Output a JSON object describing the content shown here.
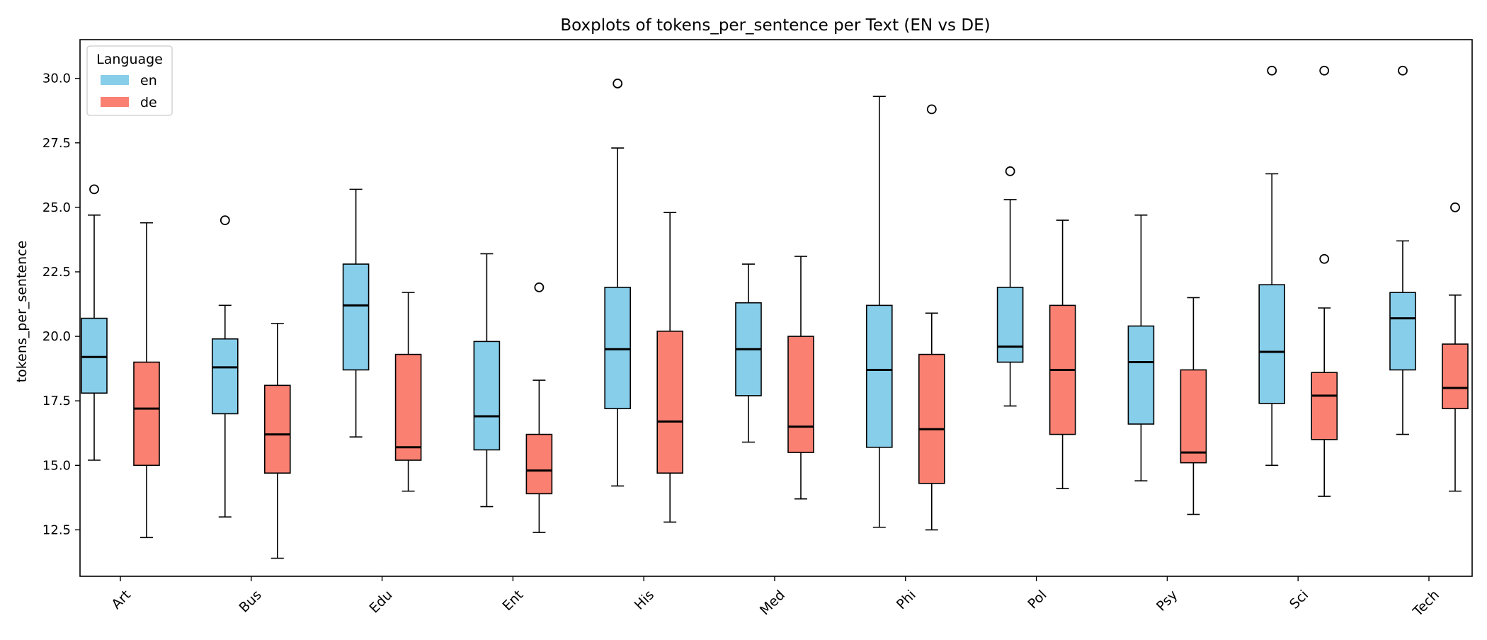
{
  "chart_data": {
    "type": "boxplot",
    "title": "Boxplots of tokens_per_sentence per Text (EN vs DE)",
    "xlabel": "",
    "ylabel": "tokens_per_sentence",
    "ylim": [
      10.7,
      31.5
    ],
    "yticks": [
      12.5,
      15.0,
      17.5,
      20.0,
      22.5,
      25.0,
      27.5,
      30.0
    ],
    "ytick_labels": [
      "12.5",
      "15.0",
      "17.5",
      "20.0",
      "22.5",
      "25.0",
      "27.5",
      "30.0"
    ],
    "categories": [
      "Art",
      "Bus",
      "Edu",
      "Ent",
      "His",
      "Med",
      "Phi",
      "Pol",
      "Psy",
      "Sci",
      "Tech"
    ],
    "grid": false,
    "legend": {
      "title": "Language",
      "position": "top-left"
    },
    "series": [
      {
        "name": "en",
        "color": "#87CEEB",
        "boxes": [
          {
            "whislo": 15.2,
            "q1": 17.8,
            "med": 19.2,
            "q3": 20.7,
            "whishi": 24.7,
            "fliers": [
              25.7
            ]
          },
          {
            "whislo": 13.0,
            "q1": 17.0,
            "med": 18.8,
            "q3": 19.9,
            "whishi": 21.2,
            "fliers": [
              24.5
            ]
          },
          {
            "whislo": 16.1,
            "q1": 18.7,
            "med": 21.2,
            "q3": 22.8,
            "whishi": 25.7,
            "fliers": []
          },
          {
            "whislo": 13.4,
            "q1": 15.6,
            "med": 16.9,
            "q3": 19.8,
            "whishi": 23.2,
            "fliers": []
          },
          {
            "whislo": 14.2,
            "q1": 17.2,
            "med": 19.5,
            "q3": 21.9,
            "whishi": 27.3,
            "fliers": [
              29.8
            ]
          },
          {
            "whislo": 15.9,
            "q1": 17.7,
            "med": 19.5,
            "q3": 21.3,
            "whishi": 22.8,
            "fliers": []
          },
          {
            "whislo": 12.6,
            "q1": 15.7,
            "med": 18.7,
            "q3": 21.2,
            "whishi": 29.3,
            "fliers": []
          },
          {
            "whislo": 17.3,
            "q1": 19.0,
            "med": 19.6,
            "q3": 21.9,
            "whishi": 25.3,
            "fliers": [
              26.4
            ]
          },
          {
            "whislo": 14.4,
            "q1": 16.6,
            "med": 19.0,
            "q3": 20.4,
            "whishi": 24.7,
            "fliers": []
          },
          {
            "whislo": 15.0,
            "q1": 17.4,
            "med": 19.4,
            "q3": 22.0,
            "whishi": 26.3,
            "fliers": [
              30.3
            ]
          },
          {
            "whislo": 16.2,
            "q1": 18.7,
            "med": 20.7,
            "q3": 21.7,
            "whishi": 23.7,
            "fliers": [
              30.3
            ]
          }
        ]
      },
      {
        "name": "de",
        "color": "#FA8072",
        "boxes": [
          {
            "whislo": 12.2,
            "q1": 15.0,
            "med": 17.2,
            "q3": 19.0,
            "whishi": 24.4,
            "fliers": []
          },
          {
            "whislo": 11.4,
            "q1": 14.7,
            "med": 16.2,
            "q3": 18.1,
            "whishi": 20.5,
            "fliers": []
          },
          {
            "whislo": 14.0,
            "q1": 15.2,
            "med": 15.7,
            "q3": 19.3,
            "whishi": 21.7,
            "fliers": []
          },
          {
            "whislo": 12.4,
            "q1": 13.9,
            "med": 14.8,
            "q3": 16.2,
            "whishi": 18.3,
            "fliers": [
              21.9
            ]
          },
          {
            "whislo": 12.8,
            "q1": 14.7,
            "med": 16.7,
            "q3": 20.2,
            "whishi": 24.8,
            "fliers": []
          },
          {
            "whislo": 13.7,
            "q1": 15.5,
            "med": 16.5,
            "q3": 20.0,
            "whishi": 23.1,
            "fliers": []
          },
          {
            "whislo": 12.5,
            "q1": 14.3,
            "med": 16.4,
            "q3": 19.3,
            "whishi": 20.9,
            "fliers": [
              28.8
            ]
          },
          {
            "whislo": 14.1,
            "q1": 16.2,
            "med": 18.7,
            "q3": 21.2,
            "whishi": 24.5,
            "fliers": []
          },
          {
            "whislo": 13.1,
            "q1": 15.1,
            "med": 15.5,
            "q3": 18.7,
            "whishi": 21.5,
            "fliers": []
          },
          {
            "whislo": 13.8,
            "q1": 16.0,
            "med": 17.7,
            "q3": 18.6,
            "whishi": 21.1,
            "fliers": [
              23.0,
              30.3
            ]
          },
          {
            "whislo": 14.0,
            "q1": 17.2,
            "med": 18.0,
            "q3": 19.7,
            "whishi": 21.6,
            "fliers": [
              25.0
            ]
          }
        ]
      }
    ]
  }
}
